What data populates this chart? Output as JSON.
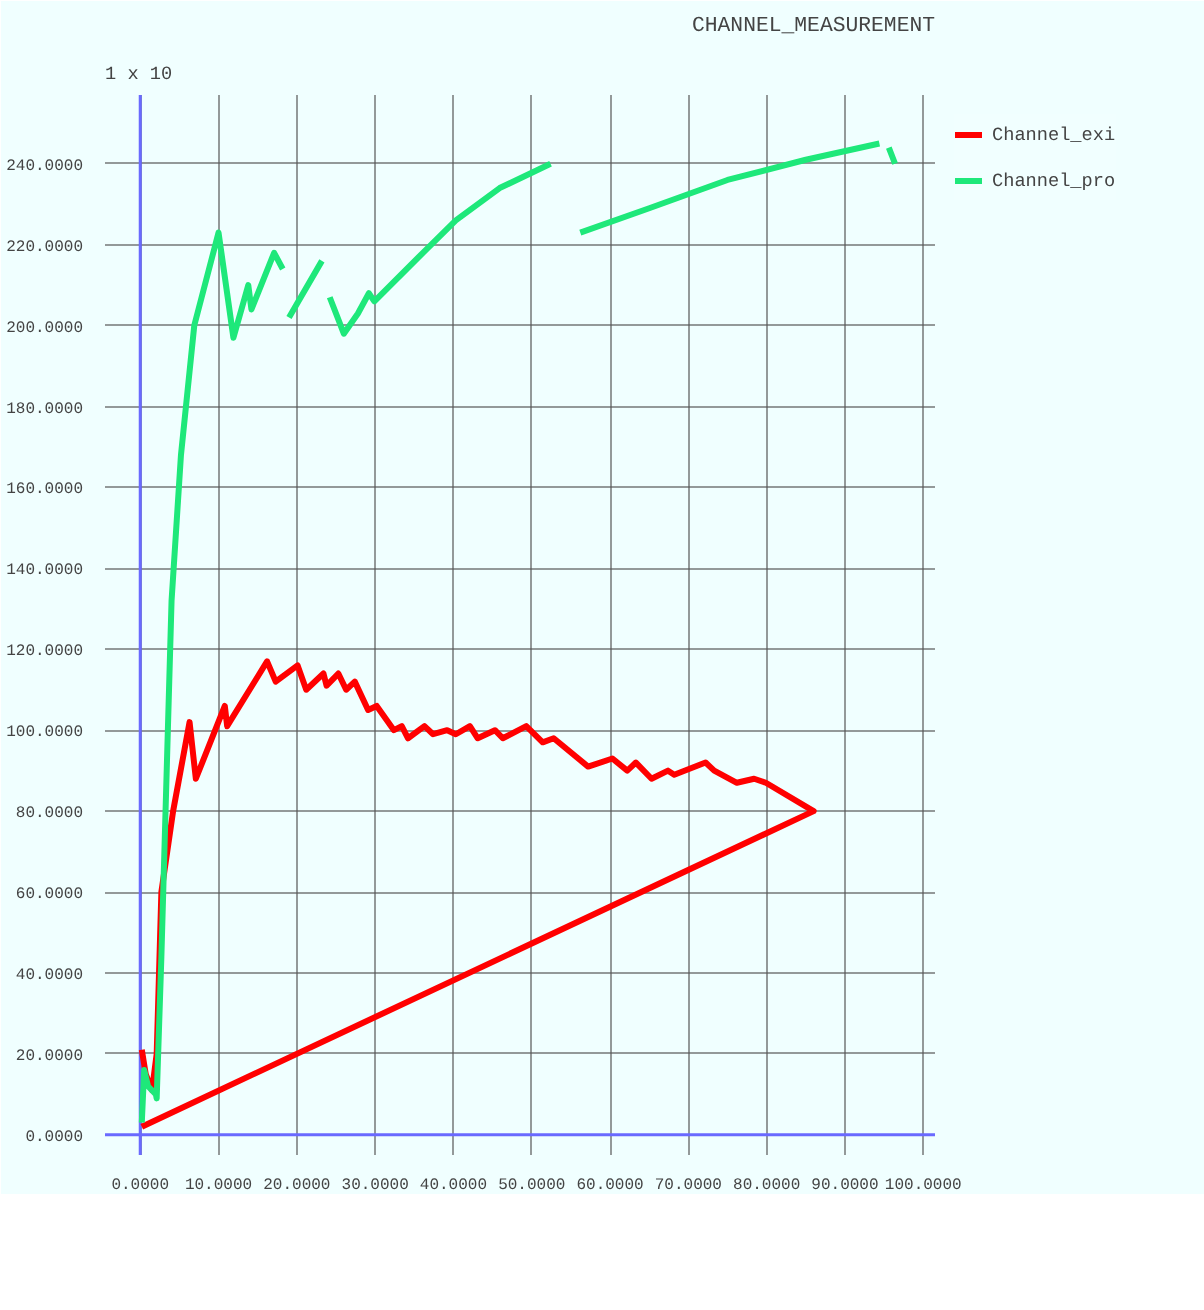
{
  "chart_data": {
    "type": "line",
    "title": "CHANNEL_MEASUREMENT",
    "annotations": [
      "1 x 10"
    ],
    "xlim": [
      -4.5,
      101.5
    ],
    "ylim": [
      -5,
      257
    ],
    "xticks": [
      {
        "value": 0,
        "label": "0.0000"
      },
      {
        "value": 10,
        "label": "10.0000"
      },
      {
        "value": 20,
        "label": "20.0000"
      },
      {
        "value": 30,
        "label": "30.0000"
      },
      {
        "value": 40,
        "label": "40.0000"
      },
      {
        "value": 50,
        "label": "50.0000"
      },
      {
        "value": 60,
        "label": "60.0000"
      },
      {
        "value": 70,
        "label": "70.0000"
      },
      {
        "value": 80,
        "label": "80.0000"
      },
      {
        "value": 90,
        "label": "90.0000"
      },
      {
        "value": 100,
        "label": "100.0000"
      }
    ],
    "yticks": [
      {
        "value": 0,
        "label": "0.0000"
      },
      {
        "value": 20,
        "label": "20.0000"
      },
      {
        "value": 40,
        "label": "40.0000"
      },
      {
        "value": 60,
        "label": "60.0000"
      },
      {
        "value": 80,
        "label": "80.0000"
      },
      {
        "value": 100,
        "label": "100.0000"
      },
      {
        "value": 120,
        "label": "120.0000"
      },
      {
        "value": 140,
        "label": "140.0000"
      },
      {
        "value": 160,
        "label": "160.0000"
      },
      {
        "value": 180,
        "label": "180.0000"
      },
      {
        "value": 200,
        "label": "200.0000"
      },
      {
        "value": 220,
        "label": "220.0000"
      },
      {
        "value": 240,
        "label": "240.0000"
      }
    ],
    "grid": true,
    "legend": "top right",
    "marker": "none",
    "line_style": "solid",
    "series": [
      {
        "name": "Channel_exi",
        "color": "#ff0000",
        "x": [
          0.2,
          0.7,
          1.5,
          2.1,
          2.7,
          4.2,
          6.3,
          7.1,
          10.8,
          11.1,
          16.2,
          17.3,
          20.1,
          21.2,
          23.4,
          23.8,
          25.3,
          26.3,
          27.4,
          29.1,
          30.2,
          32.4,
          33.4,
          34.2,
          36.3,
          37.4,
          39.2,
          40.3,
          42.1,
          43.1,
          45.3,
          46.3,
          49.3,
          51.4,
          52.8,
          57.2,
          60.3,
          62.2,
          63.3,
          65.3,
          67.4,
          68.2,
          72.2,
          73.3,
          76.2,
          78.4,
          79.9,
          86,
          0.2
        ],
        "values": [
          21,
          15,
          11,
          20,
          60,
          80,
          102,
          88,
          106,
          101,
          117,
          112,
          116,
          110,
          114,
          111,
          114,
          110,
          112,
          105,
          106,
          100,
          101,
          98,
          101,
          99,
          100,
          99,
          101,
          98,
          100,
          98,
          101,
          97,
          98,
          91,
          93,
          90,
          92,
          88,
          90,
          89,
          92,
          90,
          87,
          88,
          87,
          80,
          2
        ]
      },
      {
        "name": "Channel_pro",
        "color": "#1ee87a",
        "x": [
          0.2,
          0.5,
          1,
          2,
          2.1,
          2.7,
          4,
          5.2,
          6.9,
          10,
          11.9,
          13.8,
          14.2,
          17.1,
          18.2,
          18.6,
          19,
          23.2,
          23.7,
          24.2,
          26,
          27.8,
          29.2,
          29.9,
          36.1,
          40.3,
          45.9,
          52.4,
          54.3,
          56.2,
          65,
          75,
          85,
          94.4,
          95.1,
          95.6,
          96.4
        ],
        "values": [
          3,
          16,
          12,
          10,
          9,
          44,
          132,
          168,
          200,
          223,
          197,
          210,
          204,
          218,
          214,
          null,
          202,
          216,
          null,
          207,
          198,
          203,
          208,
          206,
          218,
          226,
          234,
          240,
          null,
          223,
          229,
          236,
          241,
          245,
          null,
          244,
          240
        ]
      }
    ]
  }
}
